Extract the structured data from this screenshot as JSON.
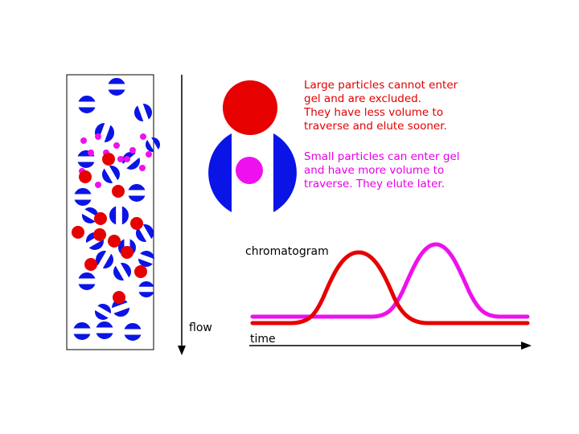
{
  "colors": {
    "bead": "#0a14e6",
    "large": "#e60000",
    "small": "#ee10ee",
    "ink": "#000000",
    "large_text": "#e10000",
    "small_text": "#e600e6"
  },
  "annotations": {
    "large_lines": [
      "Large particles cannot enter",
      "gel and are excluded.",
      "They have less volume to",
      "traverse and elute sooner."
    ],
    "small_lines": [
      "Small particles can enter gel",
      "and have more volume to",
      "traverse.  They elute later."
    ]
  },
  "labels": {
    "flow": "flow",
    "chromatogram": "chromatogram",
    "time": "time"
  }
}
